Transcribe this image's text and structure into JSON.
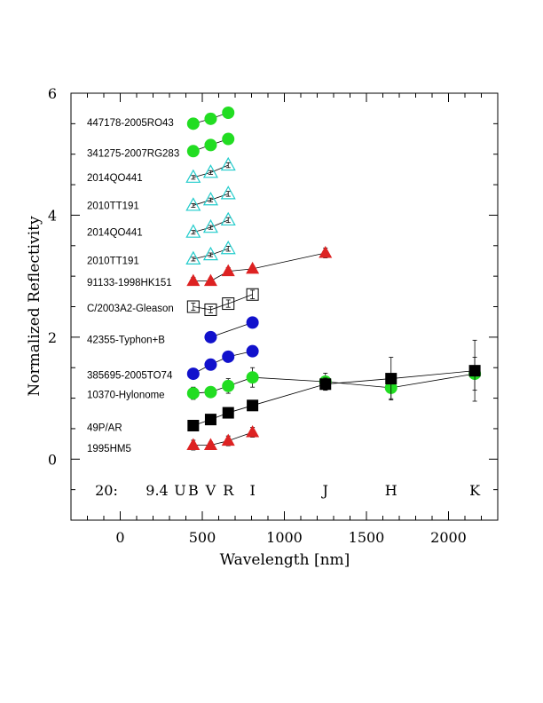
{
  "chart_data": {
    "type": "scatter",
    "xlabel": "Wavelength [nm]",
    "ylabel": "Normalized Reflectivity",
    "xlim": [
      -300,
      2300
    ],
    "ylim": [
      -1,
      6
    ],
    "x_ticks": [
      0,
      500,
      1000,
      1500,
      2000
    ],
    "y_ticks": [
      0,
      2,
      4,
      6
    ],
    "band_row": {
      "prefix": "20:",
      "magnitude": "9.4",
      "bands": [
        {
          "label": "U",
          "x": 365
        },
        {
          "label": "B",
          "x": 445
        },
        {
          "label": "V",
          "x": 551
        },
        {
          "label": "R",
          "x": 658
        },
        {
          "label": "I",
          "x": 806
        },
        {
          "label": "J",
          "x": 1250
        },
        {
          "label": "H",
          "x": 1650
        },
        {
          "label": "K",
          "x": 2160
        }
      ]
    },
    "series": [
      {
        "name": "447178-2005RO43",
        "marker": "circle",
        "color": "#22dd22",
        "label_y": 5.52,
        "x": [
          445,
          551,
          658
        ],
        "y": [
          5.5,
          5.58,
          5.68
        ],
        "err": [
          0.04,
          0.04,
          0.05
        ]
      },
      {
        "name": "341275-2007RG283",
        "marker": "circle",
        "color": "#22dd22",
        "label_y": 5.02,
        "x": [
          445,
          551,
          658
        ],
        "y": [
          5.05,
          5.15,
          5.25
        ],
        "err": [
          0.04,
          0.04,
          0.04
        ]
      },
      {
        "name": "2014QO441",
        "marker": "triangle-open",
        "color": "#22cccc",
        "label_y": 4.62,
        "x": [
          445,
          551,
          658
        ],
        "y": [
          4.62,
          4.7,
          4.82
        ],
        "err": [
          0.03,
          0.03,
          0.04
        ]
      },
      {
        "name": "2010TT191",
        "marker": "triangle-open",
        "color": "#22cccc",
        "label_y": 4.16,
        "x": [
          445,
          551,
          658
        ],
        "y": [
          4.16,
          4.25,
          4.35
        ],
        "err": [
          0.03,
          0.03,
          0.04
        ]
      },
      {
        "name": "2014QO441",
        "marker": "triangle-open",
        "color": "#22cccc",
        "label_y": 3.72,
        "x": [
          445,
          551,
          658
        ],
        "y": [
          3.72,
          3.8,
          3.92
        ],
        "err": [
          0.03,
          0.03,
          0.04
        ]
      },
      {
        "name": "2010TT191",
        "marker": "triangle-open",
        "color": "#22cccc",
        "label_y": 3.26,
        "x": [
          445,
          551,
          658
        ],
        "y": [
          3.28,
          3.35,
          3.45
        ],
        "err": [
          0.03,
          0.03,
          0.04
        ]
      },
      {
        "name": "91133-1998HK151",
        "marker": "triangle",
        "color": "#dd2222",
        "label_y": 2.9,
        "x": [
          445,
          551,
          658,
          806,
          1250
        ],
        "y": [
          2.92,
          2.92,
          3.08,
          3.12,
          3.38
        ],
        "err": [
          0.06,
          0.05,
          0.06,
          0.05,
          0.08
        ]
      },
      {
        "name": "C/2003A2-Gleason",
        "marker": "square-open",
        "color": "#000000",
        "label_y": 2.48,
        "x": [
          445,
          551,
          658,
          806
        ],
        "y": [
          2.5,
          2.45,
          2.55,
          2.7
        ],
        "err": [
          0.06,
          0.05,
          0.06,
          0.07
        ]
      },
      {
        "name": "42355-Typhon+B",
        "marker": "circle",
        "color": "#1111cc",
        "label_y": 1.96,
        "x": [
          551,
          806
        ],
        "y": [
          2.0,
          2.24
        ],
        "err": [
          0.0,
          0.0
        ]
      },
      {
        "name": "385695-2005TO74",
        "marker": "circle",
        "color": "#1111cc",
        "label_y": 1.38,
        "x": [
          445,
          551,
          658,
          806
        ],
        "y": [
          1.4,
          1.55,
          1.68,
          1.77
        ],
        "err": [
          0.0,
          0.0,
          0.0,
          0.0
        ]
      },
      {
        "name": "10370-Hylonome",
        "marker": "circle",
        "color": "#22dd22",
        "label_y": 1.06,
        "x": [
          445,
          551,
          658,
          806,
          1250,
          1650,
          2160
        ],
        "y": [
          1.08,
          1.1,
          1.2,
          1.34,
          1.27,
          1.17,
          1.4
        ],
        "err": [
          0.1,
          0.06,
          0.12,
          0.16,
          0.14,
          0.18,
          0.27
        ]
      },
      {
        "name": "49P/AR",
        "marker": "square",
        "color": "#000000",
        "label_y": 0.52,
        "x": [
          445,
          551,
          658,
          806,
          1250,
          1650,
          2160
        ],
        "y": [
          0.55,
          0.65,
          0.76,
          0.88,
          1.23,
          1.32,
          1.45
        ],
        "err": [
          0.0,
          0.0,
          0.0,
          0.0,
          0.1,
          0.35,
          0.5
        ]
      },
      {
        "name": "1995HM5",
        "marker": "triangle",
        "color": "#dd2222",
        "label_y": 0.18,
        "x": [
          445,
          551,
          658,
          806
        ],
        "y": [
          0.23,
          0.23,
          0.3,
          0.44
        ],
        "err": [
          0.08,
          0.05,
          0.08,
          0.08
        ]
      }
    ]
  }
}
